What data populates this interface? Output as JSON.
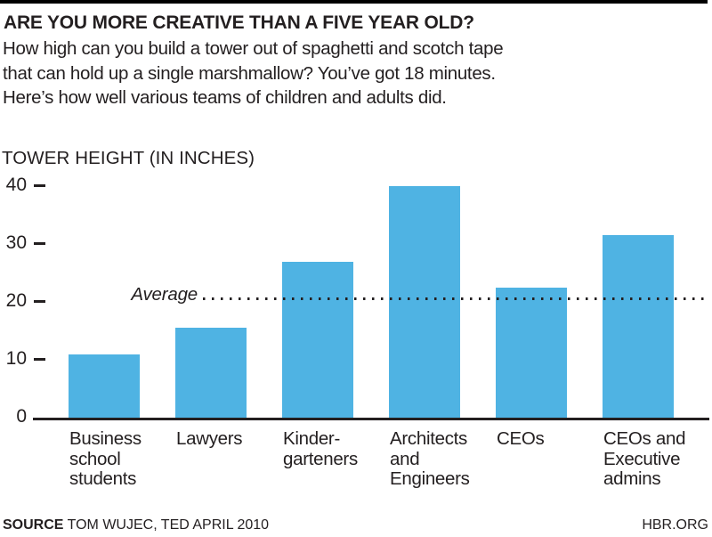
{
  "header": {
    "title": "ARE YOU MORE CREATIVE THAN A FIVE YEAR OLD?",
    "subtitle_lines": [
      "How high can you build a tower out of spaghetti and scotch tape",
      "that can hold up a single marshmallow? You’ve got 18 minutes.",
      "Here’s how well various teams of children and adults did."
    ]
  },
  "chart_data": {
    "type": "bar",
    "title": "",
    "ylabel": "TOWER HEIGHT (IN INCHES)",
    "xlabel": "",
    "categories": [
      "Business school students",
      "Lawyers",
      "Kindergarteners",
      "Architects and Engineers",
      "CEOs",
      "CEOs and Executive admins"
    ],
    "category_label_lines": [
      [
        "Business",
        "school",
        "students"
      ],
      [
        "Lawyers"
      ],
      [
        "Kinder-",
        "garteners"
      ],
      [
        "Architects",
        "and",
        "Engineers"
      ],
      [
        "CEOs"
      ],
      [
        "CEOs and",
        "Executive",
        "admins"
      ]
    ],
    "values": [
      11,
      15.5,
      27,
      40,
      22.5,
      31.5
    ],
    "average": 20.5,
    "average_label": "Average",
    "average_line_style": "dotted",
    "y_ticks": [
      0,
      10,
      20,
      30,
      40
    ],
    "ylim": [
      0,
      42
    ],
    "grid": false,
    "legend": "none",
    "bar_color": "#4FB3E3"
  },
  "footer": {
    "source_label": "SOURCE",
    "source_text": "TOM WUJEC, TED APRIL 2010",
    "site": "HBR.ORG"
  },
  "colors": {
    "text": "#231F20",
    "bar": "#4FB3E3",
    "background": "#FFFFFF",
    "top_bar": "#000000"
  }
}
